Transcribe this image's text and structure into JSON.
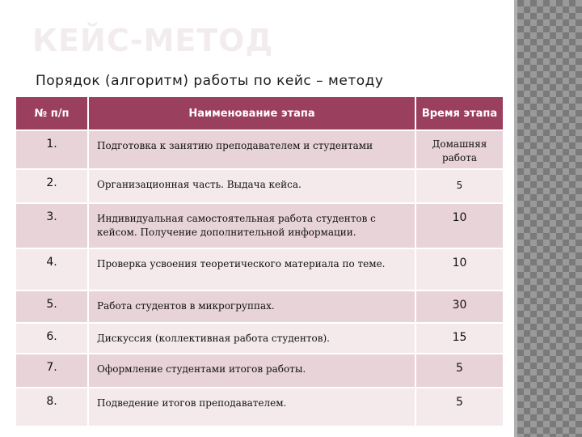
{
  "slide": {
    "title": "КЕЙС-МЕТОД",
    "subtitle": "Порядок (алгоритм) работы по кейс – методу"
  },
  "table": {
    "headers": [
      "№ п/п",
      "Наименование этапа",
      "Время этапа"
    ],
    "rows": [
      {
        "num": "1.",
        "name": "Подготовка к занятию преподавателем и студентами",
        "time": "Домашняя работа"
      },
      {
        "num": "2.",
        "name": "Организационная часть. Выдача кейса.",
        "time": "5"
      },
      {
        "num": "3.",
        "name": "Индивидуальная самостоятельная работа студентов с кейсом. Получение дополнительной информации.",
        "time": "10"
      },
      {
        "num": "4.",
        "name": "Проверка усвоения теоретического материала по теме.",
        "time": "10"
      },
      {
        "num": "5.",
        "name": "Работа студентов в микрогруппах.",
        "time": "30"
      },
      {
        "num": "6.",
        "name": "Дискуссия (коллективная работа студентов).",
        "time": "15"
      },
      {
        "num": "7.",
        "name": "Оформление студентами итогов работы.",
        "time": "5"
      },
      {
        "num": "8.",
        "name": "Подведение итогов преподавателем.",
        "time": "5"
      }
    ]
  }
}
